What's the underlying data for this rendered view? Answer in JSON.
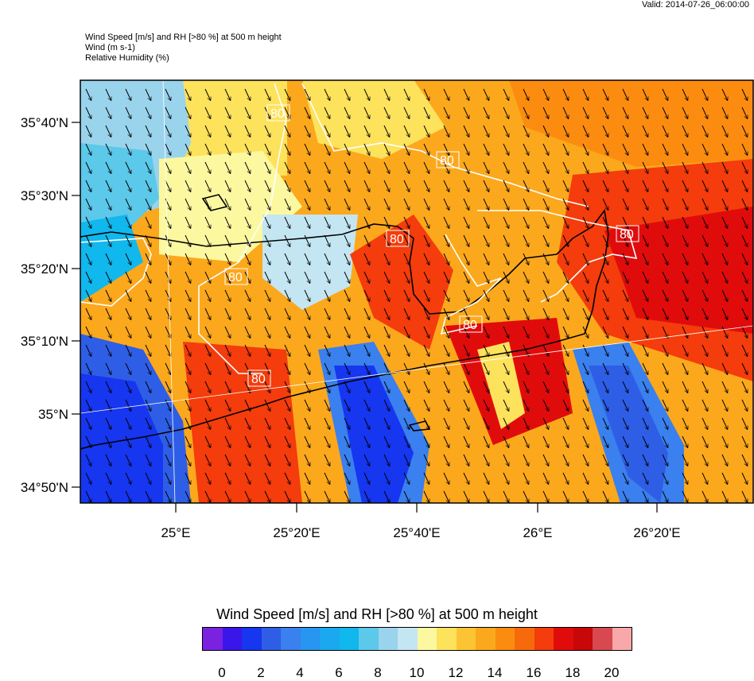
{
  "valid": "Valid: 2014-07-26_06:00:00",
  "header": {
    "line1": "Wind Speed [m/s] and RH [>80 %] at 500 m height",
    "line2": "Wind   (m s-1)",
    "line3": "Relative Humidity   (%)"
  },
  "map": {
    "lat_labels": [
      "35°40'N",
      "35°30'N",
      "35°20'N",
      "35°10'N",
      "35°N",
      "34°50'N"
    ],
    "lon_labels": [
      "25°E",
      "25°20'E",
      "25°40'E",
      "26°E",
      "26°20'E"
    ],
    "contour_labels": [
      "80",
      "80",
      "80",
      "80",
      "80",
      "80",
      "80"
    ]
  },
  "colorbar": {
    "title": "Wind Speed [m/s] and RH [>80 %] at 500 m height",
    "colors": [
      "#7a22e0",
      "#3a16ea",
      "#1636f0",
      "#2f5ee6",
      "#3a80ee",
      "#2696f0",
      "#1aa8ee",
      "#10b8ee",
      "#5cc8ea",
      "#9ad4ec",
      "#c4e6f2",
      "#fcf8a0",
      "#fde25c",
      "#fcc434",
      "#fca81c",
      "#fc8c10",
      "#f76a0c",
      "#f43c0c",
      "#e00c0c",
      "#c80808",
      "#d84850",
      "#f8a8a8"
    ],
    "labels": [
      "0",
      "2",
      "4",
      "6",
      "8",
      "10",
      "12",
      "14",
      "16",
      "18",
      "20"
    ]
  }
}
